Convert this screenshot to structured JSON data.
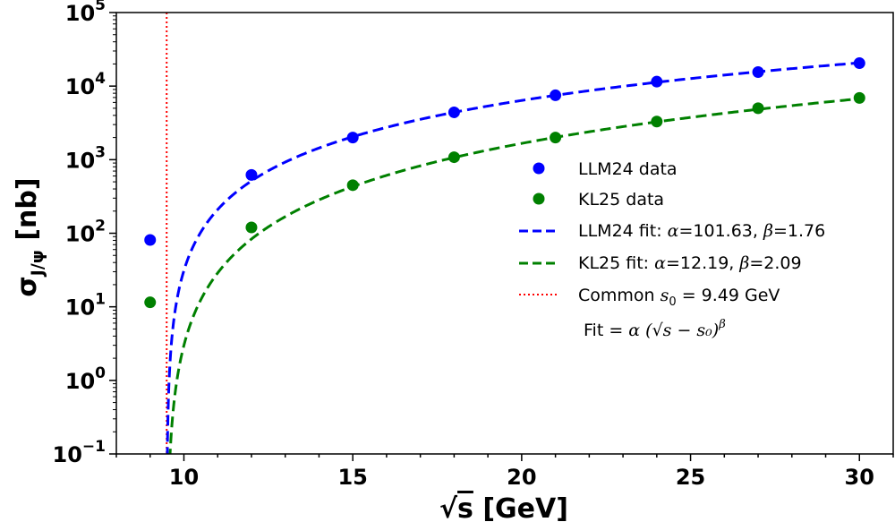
{
  "chart_data": {
    "type": "scatter",
    "title": "",
    "xlabel": "√s [GeV]",
    "xlabel_prefix": "√",
    "xlabel_var": "s",
    "xlabel_unit": "[GeV]",
    "ylabel": "σ_J/ψ [nb]",
    "ylabel_main": "σ",
    "ylabel_sub": "J/ψ",
    "ylabel_unit": "[nb]",
    "xlim": [
      8,
      31
    ],
    "ylim_log10": [
      -1,
      5
    ],
    "yscale": "log",
    "xticks": [
      10,
      15,
      20,
      25,
      30
    ],
    "xtick_labels": [
      "10",
      "15",
      "20",
      "25",
      "30"
    ],
    "yticks_exp": [
      -1,
      0,
      1,
      2,
      3,
      4,
      5
    ],
    "ytick_exp_labels": [
      "−1",
      "0",
      "1",
      "2",
      "3",
      "4",
      "5"
    ],
    "ytick_base": "10",
    "grid": false,
    "legend_position": "center-right",
    "s0": 9.49,
    "series": [
      {
        "name": "LLM24 data",
        "kind": "points",
        "color": "#0000ff",
        "x": [
          9,
          12,
          15,
          18,
          21,
          24,
          27,
          30
        ],
        "y": [
          81,
          620,
          2000,
          4400,
          7500,
          11500,
          15500,
          20500
        ]
      },
      {
        "name": "KL25 data",
        "kind": "points",
        "color": "#008000",
        "x": [
          9,
          12,
          15,
          18,
          21,
          24,
          27,
          30
        ],
        "y": [
          11.5,
          120,
          450,
          1080,
          2000,
          3300,
          5000,
          6900
        ]
      },
      {
        "name": "LLM24 fit",
        "label_prefix": "LLM24 fit: ",
        "alpha": 101.63,
        "beta": 1.76,
        "alpha_text": "101.63",
        "beta_text": "1.76",
        "kind": "fit",
        "color": "#0000ff"
      },
      {
        "name": "KL25 fit",
        "label_prefix": "KL25 fit: ",
        "alpha": 12.19,
        "beta": 2.09,
        "alpha_text": "12.19",
        "beta_text": "2.09",
        "kind": "fit",
        "color": "#008000"
      },
      {
        "name": "Common s0",
        "label_prefix": "Common ",
        "value_text": " = 9.49 GeV",
        "kind": "vline",
        "color": "#ff0000"
      }
    ],
    "annotation": {
      "prefix": "Fit = ",
      "formula": "α (√s − s₀)",
      "exponent": "β"
    }
  }
}
